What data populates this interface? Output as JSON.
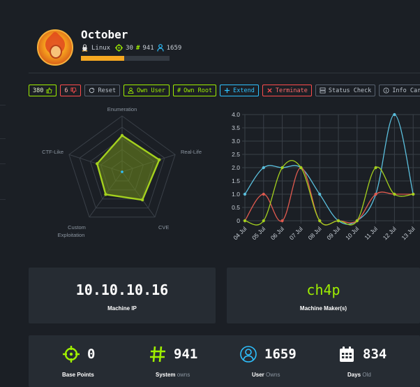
{
  "machine": {
    "name": "October",
    "os": "Linux",
    "points": "30",
    "system_owns": "941",
    "user_owns": "1659",
    "progress": 0.49
  },
  "actions": {
    "likes": "380",
    "dislikes": "6",
    "reset": "Reset",
    "own_user": "Own User",
    "own_root": "Own Root",
    "extend": "Extend",
    "terminate": "Terminate",
    "status_check": "Status Check",
    "info_card": "Info Card"
  },
  "radar": {
    "axes": [
      "Enumeration",
      "Real-Life",
      "CVE",
      "Custom",
      "Exploitation",
      "CTF-Like"
    ],
    "axis_labels": {
      "enumeration": "Enumeration",
      "real_life": "Real-Life",
      "cve": "CVE",
      "custom_line1": "Custom",
      "custom_line2": "Exploitation",
      "ctf_like": "CTF-Like"
    },
    "colors": {
      "fill": "#6f8a1c",
      "stroke": "#a4d11e",
      "grid": "#3a4048",
      "center": "#2ec1ff"
    }
  },
  "chart_data": [
    {
      "type": "radar",
      "categories": [
        "Enumeration",
        "Real-Life",
        "CVE",
        "Custom Exploitation",
        "CTF-Like"
      ],
      "values": [
        0.65,
        0.7,
        0.62,
        0.5,
        0.47
      ],
      "rlim": [
        0,
        1
      ]
    },
    {
      "type": "line",
      "categories": [
        "04 Jul",
        "05 Jul",
        "06 Jul",
        "07 Jul",
        "08 Jul",
        "09 Jul",
        "10 Jul",
        "11 Jul",
        "12 Jul",
        "13 Jul"
      ],
      "ylim": [
        0,
        4.0
      ],
      "yticks": [
        "0",
        "0.5",
        "1.0",
        "1.5",
        "2.0",
        "2.5",
        "3.0",
        "3.5",
        "4.0"
      ],
      "grid": true,
      "series": [
        {
          "color": "#5bc0de",
          "values": [
            1,
            2,
            2,
            2,
            1,
            0,
            0,
            1,
            4,
            1
          ]
        },
        {
          "color": "#e05a4f",
          "values": [
            0,
            1,
            0,
            2,
            0,
            0,
            0,
            1,
            1,
            1
          ]
        },
        {
          "color": "#a4d11e",
          "values": [
            0,
            0,
            2,
            2,
            0,
            0,
            0,
            2,
            1,
            1
          ]
        }
      ]
    }
  ],
  "cards": {
    "ip": "10.10.10.16",
    "ip_label": "Machine IP",
    "maker": "ch4p",
    "maker_label": "Machine Maker(s)"
  },
  "stats": {
    "base_points": "0",
    "base_points_label": "Base Points",
    "system": "941",
    "system_label": "System",
    "system_suffix": "owns",
    "user": "1659",
    "user_label": "User",
    "user_suffix": "Owns",
    "days": "834",
    "days_label": "Days",
    "days_suffix": "Old"
  }
}
